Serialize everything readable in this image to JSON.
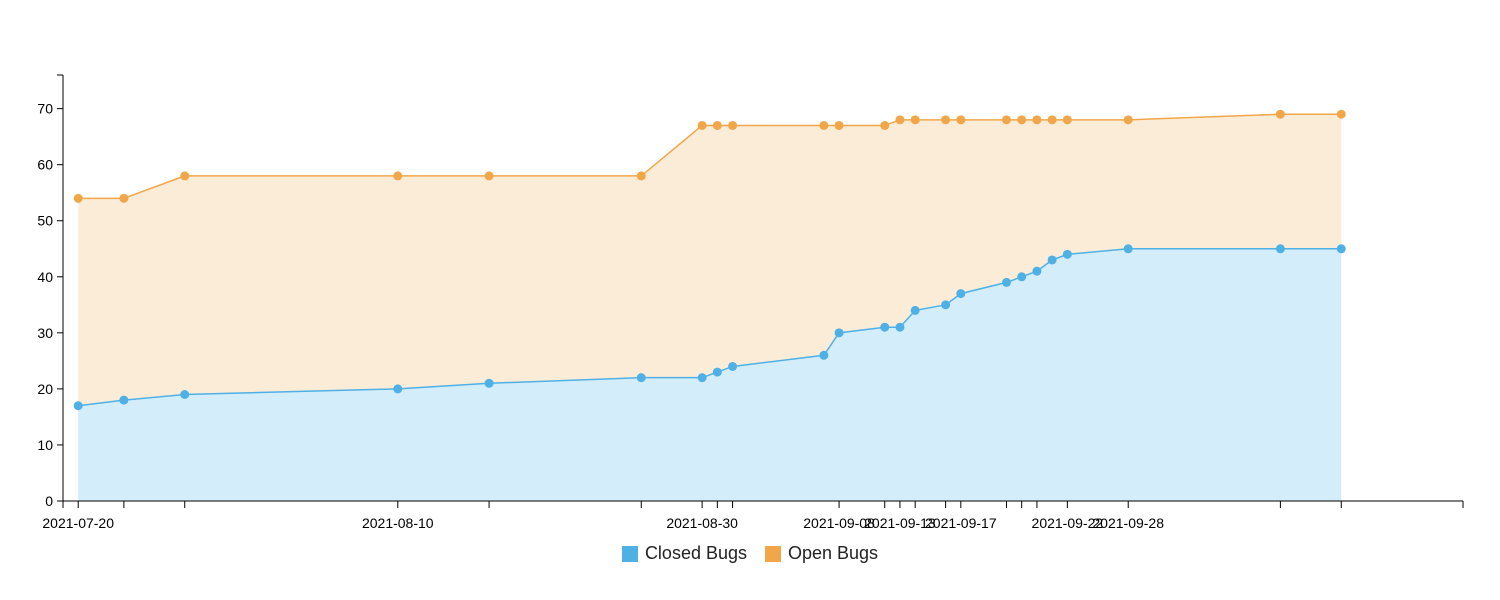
{
  "chart_data": {
    "type": "area",
    "x_axis_type": "date",
    "ylim": [
      0,
      76
    ],
    "yticks": [
      0,
      10,
      20,
      30,
      40,
      50,
      60,
      70
    ],
    "xlim": [
      "2021-07-19",
      "2021-10-19"
    ],
    "xtick_labels": [
      "2021-07-20",
      "",
      "",
      "2021-08-10",
      "",
      "",
      "2021-08-30",
      "",
      "",
      "2021-09-08",
      "",
      "2021-09-13",
      "",
      "",
      "2021-09-17",
      "",
      "",
      "",
      "2021-09-22",
      "2021-09-28",
      "",
      ""
    ],
    "x": [
      "2021-07-20",
      "2021-07-23",
      "2021-07-27",
      "2021-08-10",
      "2021-08-16",
      "2021-08-26",
      "2021-08-30",
      "2021-08-31",
      "2021-09-01",
      "2021-09-07",
      "2021-09-08",
      "2021-09-11",
      "2021-09-12",
      "2021-09-13",
      "2021-09-15",
      "2021-09-16",
      "2021-09-19",
      "2021-09-20",
      "2021-09-21",
      "2021-09-22",
      "2021-09-23",
      "2021-09-27",
      "2021-10-07",
      "2021-10-11"
    ],
    "series": [
      {
        "name": "Closed Bugs",
        "color": "#4fb0e6",
        "fill": "#d3eefa",
        "values": [
          17,
          18,
          19,
          20,
          21,
          22,
          22,
          23,
          24,
          26,
          30,
          31,
          31,
          34,
          35,
          37,
          39,
          40,
          41,
          43,
          44,
          45,
          45,
          45
        ]
      },
      {
        "name": "Open Bugs",
        "color": "#f2a64a",
        "fill": "#fbecd8",
        "values": [
          54,
          54,
          58,
          58,
          58,
          58,
          67,
          67,
          67,
          67,
          67,
          67,
          68,
          68,
          68,
          68,
          68,
          68,
          68,
          68,
          68,
          68,
          69,
          69
        ]
      }
    ],
    "legend_position": "bottom-center",
    "grid": false
  }
}
